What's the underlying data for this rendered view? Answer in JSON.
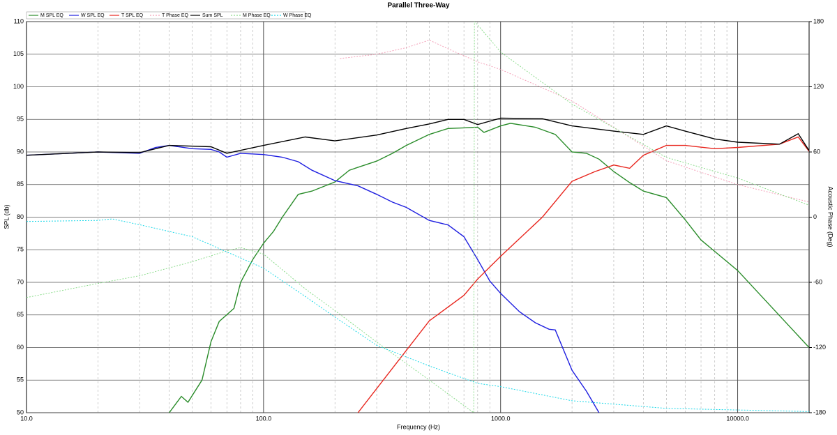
{
  "chart_data": {
    "type": "line",
    "title": "Parallel Three-Way",
    "x_label": "Frequency (Hz)",
    "y_label": "SPL (db)",
    "y2_label": "Acoustic Phase (Deg)",
    "xscale": "log",
    "xlim": [
      10,
      20000
    ],
    "xticks": [
      {
        "value": 10,
        "label": "10.0"
      },
      {
        "value": 100,
        "label": "100.0"
      },
      {
        "value": 1000,
        "label": "1000.0"
      },
      {
        "value": 10000,
        "label": "10000.0"
      }
    ],
    "x_minor_gridlines": [
      20,
      30,
      40,
      50,
      60,
      70,
      80,
      90,
      200,
      300,
      400,
      500,
      600,
      700,
      800,
      900,
      2000,
      3000,
      4000,
      5000,
      6000,
      7000,
      8000,
      9000
    ],
    "ylim": [
      50,
      110
    ],
    "yticks": [
      50,
      55,
      60,
      65,
      70,
      75,
      80,
      85,
      90,
      95,
      100,
      105,
      110
    ],
    "y2lim": [
      -180,
      180
    ],
    "y2ticks": [
      -180,
      -120,
      -60,
      0,
      60,
      120,
      180
    ],
    "grid": true,
    "series": [
      {
        "name": "M SPL EQ",
        "color": "#2a8c2a",
        "line_style": "solid",
        "x": [
          40,
          45,
          48,
          55,
          60,
          65,
          75,
          80,
          90,
          100,
          110,
          120,
          140,
          160,
          200,
          230,
          300,
          350,
          400,
          500,
          600,
          700,
          800,
          850,
          1000,
          1100,
          1400,
          1700,
          2000,
          2300,
          2600,
          3000,
          3500,
          4000,
          5000,
          6000,
          7000,
          10000,
          20000
        ],
        "values": [
          50,
          52.5,
          51.6,
          55,
          60.9,
          64,
          66,
          70,
          73.5,
          76,
          77.8,
          80,
          83.5,
          84,
          85.4,
          87.2,
          88.6,
          89.8,
          91,
          92.7,
          93.6,
          93.7,
          93.8,
          93,
          94,
          94.4,
          93.8,
          92.7,
          90,
          89.8,
          88.9,
          87,
          85.3,
          84,
          83,
          79.6,
          76.5,
          71.8,
          60
        ]
      },
      {
        "name": "W SPL EQ",
        "color": "#1f1fe0",
        "line_style": "solid",
        "x": [
          10,
          20,
          30,
          35,
          40,
          50,
          60,
          65,
          70,
          80,
          100,
          120,
          140,
          160,
          200,
          250,
          300,
          350,
          400,
          500,
          600,
          700,
          800,
          900,
          1000,
          1200,
          1400,
          1600,
          1700,
          2000,
          2300,
          2600
        ],
        "values": [
          89.5,
          90,
          89.8,
          90.7,
          91,
          90.5,
          90.4,
          90,
          89.2,
          89.8,
          89.6,
          89.2,
          88.5,
          87.2,
          85.6,
          84.8,
          83.5,
          82.3,
          81.5,
          79.5,
          78.8,
          77,
          73.5,
          70.2,
          68.3,
          65.5,
          63.8,
          62.8,
          62.7,
          56.5,
          53.3,
          50
        ]
      },
      {
        "name": "T SPL EQ",
        "color": "#e8261e",
        "line_style": "solid",
        "x": [
          250,
          500,
          700,
          800,
          1000,
          1500,
          2000,
          2500,
          3000,
          3500,
          4000,
          5000,
          6000,
          8000,
          10000,
          15000,
          18000,
          20000
        ],
        "values": [
          50,
          64.1,
          68,
          70.5,
          74,
          80,
          85.5,
          87,
          88,
          87.5,
          89.5,
          91,
          91,
          90.5,
          90.7,
          91.2,
          92.3,
          90.1
        ]
      },
      {
        "name": "T Phase EQ",
        "color": "#f4a0b8",
        "line_style": "dotted",
        "axis": "y2",
        "x": [
          210,
          300,
          400,
          500,
          600,
          800,
          1000,
          2000,
          5000,
          10000,
          20000
        ],
        "values": [
          146,
          150,
          156,
          163,
          155,
          143,
          136,
          107,
          52,
          30,
          14
        ]
      },
      {
        "name": "Sum SPL",
        "color": "#000000",
        "line_style": "solid",
        "x": [
          10,
          20,
          30,
          40,
          60,
          70,
          100,
          150,
          200,
          300,
          400,
          500,
          600,
          700,
          800,
          1000,
          1500,
          2000,
          3000,
          4000,
          5000,
          6000,
          8000,
          10000,
          15000,
          18000,
          20000
        ],
        "values": [
          89.5,
          90,
          89.9,
          91,
          90.8,
          89.8,
          91,
          92.3,
          91.7,
          92.6,
          93.6,
          94.3,
          95,
          95,
          94.2,
          95.2,
          95.1,
          94,
          93.2,
          92.7,
          94,
          93.2,
          92,
          91.5,
          91.2,
          92.8,
          90.2
        ]
      },
      {
        "name": "M Phase EQ",
        "color": "#8cdc8c",
        "line_style": "dotted",
        "axis": "y2",
        "x": [
          10,
          20,
          30,
          50,
          70,
          80,
          100,
          150,
          200,
          300,
          500,
          770,
          775,
          800,
          1000,
          2000,
          5000,
          10000,
          20000
        ],
        "values": [
          -74,
          -61,
          -54,
          -41,
          -31,
          -28,
          -34,
          -66,
          -86,
          -115,
          -150,
          -180,
          180,
          177,
          152,
          104,
          55,
          36,
          11
        ]
      },
      {
        "name": "W Phase EQ",
        "color": "#1ad8e8",
        "line_style": "dotted",
        "axis": "y2",
        "x": [
          10,
          20,
          23,
          30,
          50,
          70,
          100,
          150,
          200,
          300,
          500,
          800,
          1000,
          2000,
          5000,
          20000
        ],
        "values": [
          -4,
          -3,
          -1.6,
          -7,
          -18,
          -32,
          -47,
          -73,
          -92,
          -118,
          -137,
          -153,
          -156,
          -169,
          -176,
          -179
        ]
      }
    ]
  }
}
